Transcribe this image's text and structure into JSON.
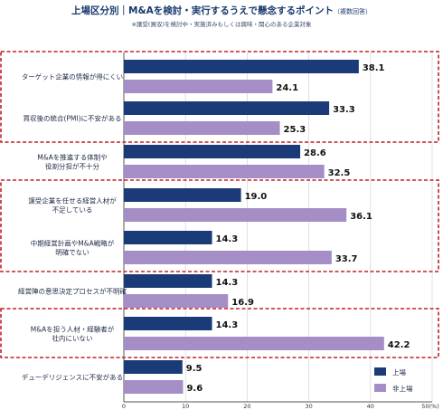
{
  "chart_data": {
    "type": "bar",
    "orientation": "horizontal",
    "title": "上場区分別｜M&Aを検討・実行するうえで懸念するポイント",
    "title_note": "（複数回答）",
    "subtitle": "※譲受(買収)を検討中・実施済みもしくは興味・関心のある企業対象",
    "categories": [
      [
        "ターゲット企業の情報が得にくい"
      ],
      [
        "買収後の統合(PMI)に不安がある"
      ],
      [
        "M&Aを推進する体制や",
        "役割分担が不十分"
      ],
      [
        "譲受企業を任せる経営人材が",
        "不足している"
      ],
      [
        "中期経営計画やM&A戦略が",
        "明確でない"
      ],
      [
        "経営陣の意思決定プロセスが不明確"
      ],
      [
        "M&Aを担う人材・経験者が",
        "社内にいない"
      ],
      [
        "デューデリジェンスに不安がある"
      ]
    ],
    "series": [
      {
        "name": "上場",
        "color": "#1b3a78",
        "values": [
          38.1,
          33.3,
          28.6,
          19.0,
          14.3,
          14.3,
          14.3,
          9.5
        ]
      },
      {
        "name": "非上場",
        "color": "#a58dc6",
        "values": [
          24.1,
          25.3,
          32.5,
          36.1,
          33.7,
          16.9,
          42.2,
          9.6
        ]
      }
    ],
    "value_labels": [
      [
        "38.1",
        "33.3",
        "28.6",
        "19.0",
        "14.3",
        "14.3",
        "14.3",
        "9.5"
      ],
      [
        "24.1",
        "25.3",
        "32.5",
        "36.1",
        "33.7",
        "16.9",
        "42.2",
        "9.6"
      ]
    ],
    "xlim": [
      0,
      50
    ],
    "xticks": [
      0,
      10,
      20,
      30,
      40,
      50
    ],
    "xtick_labels": [
      "0",
      "10",
      "20",
      "30",
      "40",
      "50(%)"
    ],
    "grid": true,
    "legend_position": "bottom-right",
    "highlight_groups": [
      [
        0,
        1
      ],
      [
        3,
        4
      ],
      [
        6
      ]
    ],
    "highlight_color": "#c0202a"
  }
}
